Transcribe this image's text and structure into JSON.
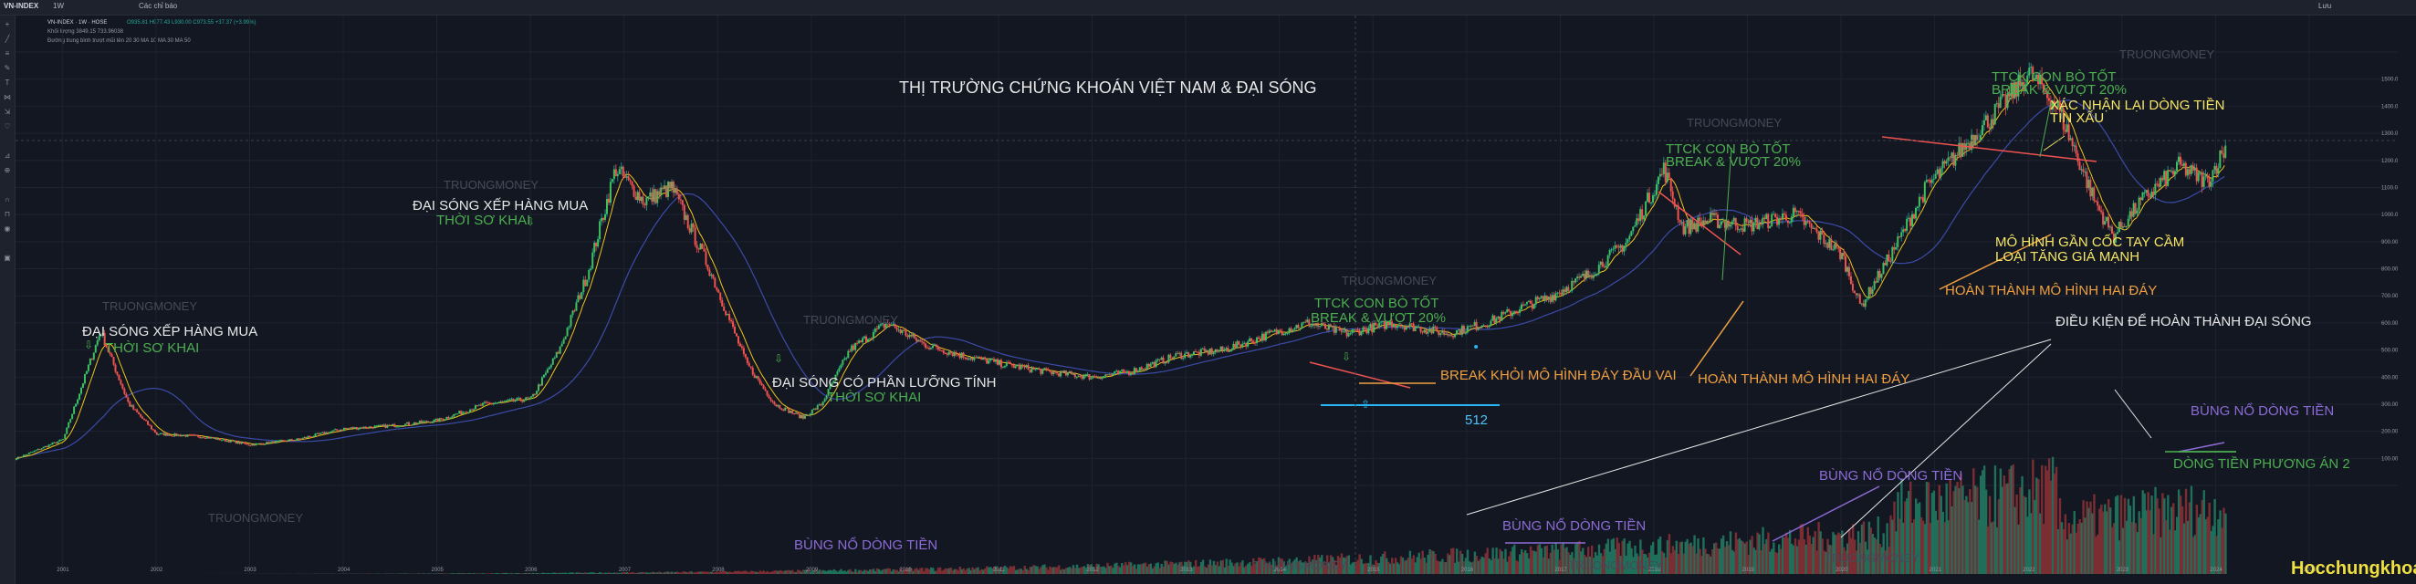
{
  "topbar": {
    "symbol": "VN-INDEX",
    "interval": "1W",
    "compare_label": "Các chỉ báo",
    "right_label": "Lưu"
  },
  "legend": {
    "line1": "VN-INDEX · 1W · HOSE",
    "line1_values": "O935.81 H977.43 L930.00 C973.55 +37.37 (+3.99%)",
    "line2": "Khối lượng  3849.15  733.96038",
    "line3": "Đường trung bình trượt mũi tên 20 30  MA 10  MA 30  MA 50"
  },
  "title": "THỊ TRƯỜNG CHỨNG KHOÁN VIỆT NAM & ĐẠI SÓNG",
  "brand": "Hocchungkhoan.vn",
  "annotations": {
    "a1": "ĐẠI SÓNG XẾP HÀNG MUA",
    "a1b": "THỜI SƠ KHAI",
    "a2": "ĐẠI SÓNG XẾP HÀNG MUA",
    "a2b": "THỜI SƠ KHAI",
    "a3": "ĐẠI SÓNG CÓ PHẦN LƯỠNG TÍNH",
    "a3b": "THỜI SƠ KHAI",
    "a4": "TTCK CON BÒ TỐT",
    "a4b": "BREAK & VƯỢT 20%",
    "a5": "BREAK KHỎI MÔ HÌNH ĐÁY ĐẦU VAI",
    "a6": "512",
    "a7": "TTCK CON BÒ TỐT",
    "a7b": "BREAK & VƯỢT 20%",
    "a8": "HOÀN THÀNH MÔ HÌNH HAI ĐÁY",
    "a9": "TTCK CON BÒ TỐT",
    "a9b": "BREAK & VƯỢT 20%",
    "a10": "XÁC NHẬN LẠI DÒNG TIỀN",
    "a10b": "TIN XẤU",
    "a11": "MÔ HÌNH GẦN CỐC TAY CẦM",
    "a11b": "LOẠI TĂNG GIÁ MẠNH",
    "a12": "HOÀN THÀNH MÔ HÌNH HAI ĐÁY",
    "a13": "ĐIỀU KIỆN ĐỂ HOÀN THÀNH ĐẠI SÓNG",
    "a14": "BÙNG NỔ DÒNG TIỀN",
    "a15": "DÒNG TIỀN PHƯƠNG ÁN 2",
    "a16": "BÙNG NỔ DÒNG TIỀN",
    "a17": "BÙNG NỔ DÒNG TIỀN",
    "a18": "BÙNG NỔ DÒNG TIỀN"
  },
  "watermark": "TRUONGMONEY",
  "colors": {
    "up": "#26a69a",
    "down": "#ef5350",
    "ma_fast": "#f0c419",
    "ma_slow": "#3b4ba8",
    "bg": "#131722"
  },
  "chart_data": {
    "type": "line",
    "title": "THỊ TRƯỜNG CHỨNG KHOÁN VIỆT NAM & ĐẠI SÓNG",
    "xlabel": "",
    "ylabel": "",
    "x": [
      2000.5,
      2001.0,
      2001.4,
      2001.7,
      2002.0,
      2002.5,
      2003.0,
      2003.5,
      2004.0,
      2004.5,
      2005.0,
      2005.5,
      2006.0,
      2006.3,
      2006.6,
      2006.9,
      2007.2,
      2007.5,
      2007.9,
      2008.3,
      2008.6,
      2008.9,
      2009.1,
      2009.4,
      2009.8,
      2010.2,
      2010.6,
      2011.0,
      2011.5,
      2012.0,
      2012.4,
      2012.9,
      2013.4,
      2013.9,
      2014.3,
      2014.7,
      2015.2,
      2015.8,
      2016.2,
      2016.6,
      2016.9,
      2017.3,
      2017.7,
      2018.1,
      2018.3,
      2018.6,
      2019.0,
      2019.5,
      2020.0,
      2020.2,
      2020.6,
      2020.9,
      2021.3,
      2021.7,
      2022.0,
      2022.3,
      2022.7,
      2022.9,
      2023.2,
      2023.6,
      2023.9,
      2024.1
    ],
    "values": [
      100,
      170,
      570,
      300,
      190,
      180,
      150,
      170,
      210,
      220,
      240,
      300,
      320,
      500,
      780,
      1170,
      1050,
      1100,
      800,
      450,
      300,
      250,
      300,
      500,
      600,
      520,
      480,
      450,
      420,
      400,
      420,
      480,
      500,
      560,
      600,
      560,
      600,
      560,
      600,
      660,
      700,
      780,
      900,
      1170,
      950,
      980,
      960,
      1000,
      850,
      660,
      900,
      1100,
      1250,
      1400,
      1520,
      1400,
      1050,
      920,
      1050,
      1180,
      1120,
      1250
    ],
    "ylim": [
      0,
      1600
    ],
    "xlim": [
      2000.5,
      2025.8
    ],
    "log_scale": false,
    "grid": true,
    "legend": "none",
    "key_levels": [
      {
        "label": "512",
        "value": 512,
        "year": 2016.1
      }
    ]
  }
}
